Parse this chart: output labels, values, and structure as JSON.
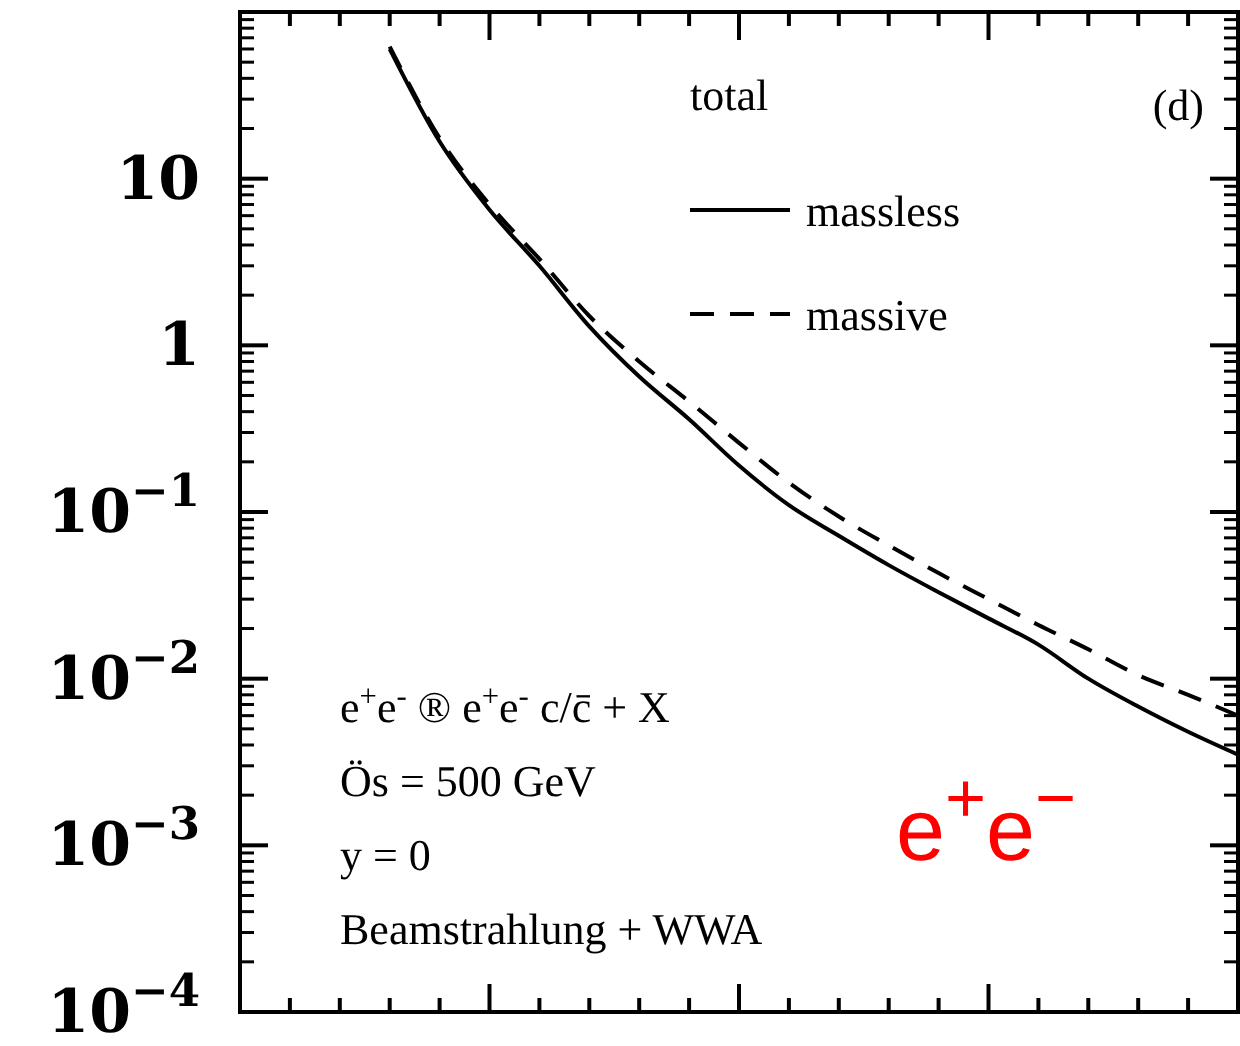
{
  "chart_data": {
    "type": "line",
    "categories": [
      null,
      null,
      null,
      null,
      null,
      null,
      null,
      null,
      null,
      null,
      null,
      null,
      null,
      null,
      null,
      null,
      null,
      null,
      null,
      null,
      null
    ],
    "series": [
      {
        "name": "massless",
        "color": "#000000",
        "line_style": "solid",
        "values": [
          null,
          null,
          null,
          60,
          16.7,
          6.5,
          3.0,
          1.3,
          0.65,
          0.36,
          0.19,
          0.11,
          0.072,
          0.048,
          0.033,
          0.023,
          0.016,
          0.01,
          0.0068,
          0.0048,
          0.0035
        ]
      },
      {
        "name": "massive",
        "color": "#000000",
        "line_style": "dashed",
        "values": [
          null,
          null,
          null,
          62,
          17.5,
          7,
          3.3,
          1.5,
          0.8,
          0.46,
          0.26,
          0.15,
          0.094,
          0.063,
          0.043,
          0.03,
          0.021,
          0.015,
          0.0105,
          0.008,
          0.006
        ]
      }
    ],
    "log": "y",
    "ylim": [
      0.0001,
      100
    ],
    "yticks": [
      {
        "value": 0.0001,
        "label": "10$^{−4}$"
      },
      {
        "value": 0.001,
        "label": "10$^{−3}$"
      },
      {
        "value": 0.01,
        "label": "10$^{−2}$"
      },
      {
        "value": 0.1,
        "label": "10$^{−1}$"
      },
      1,
      10
    ],
    "tick_labels": "y",
    "legend": "top right",
    "legend_title": "total",
    "grid": false,
    "annotations": [
      "e$^{+}$e$^{-}$ ® e$^{+}$e$^{-}$ c/c̄ + X",
      "Ös = 500 GeV",
      "y = 0",
      "Beamstrahlung + WWA",
      "(d)",
      "e$^{+}$e$^{−}$"
    ]
  }
}
